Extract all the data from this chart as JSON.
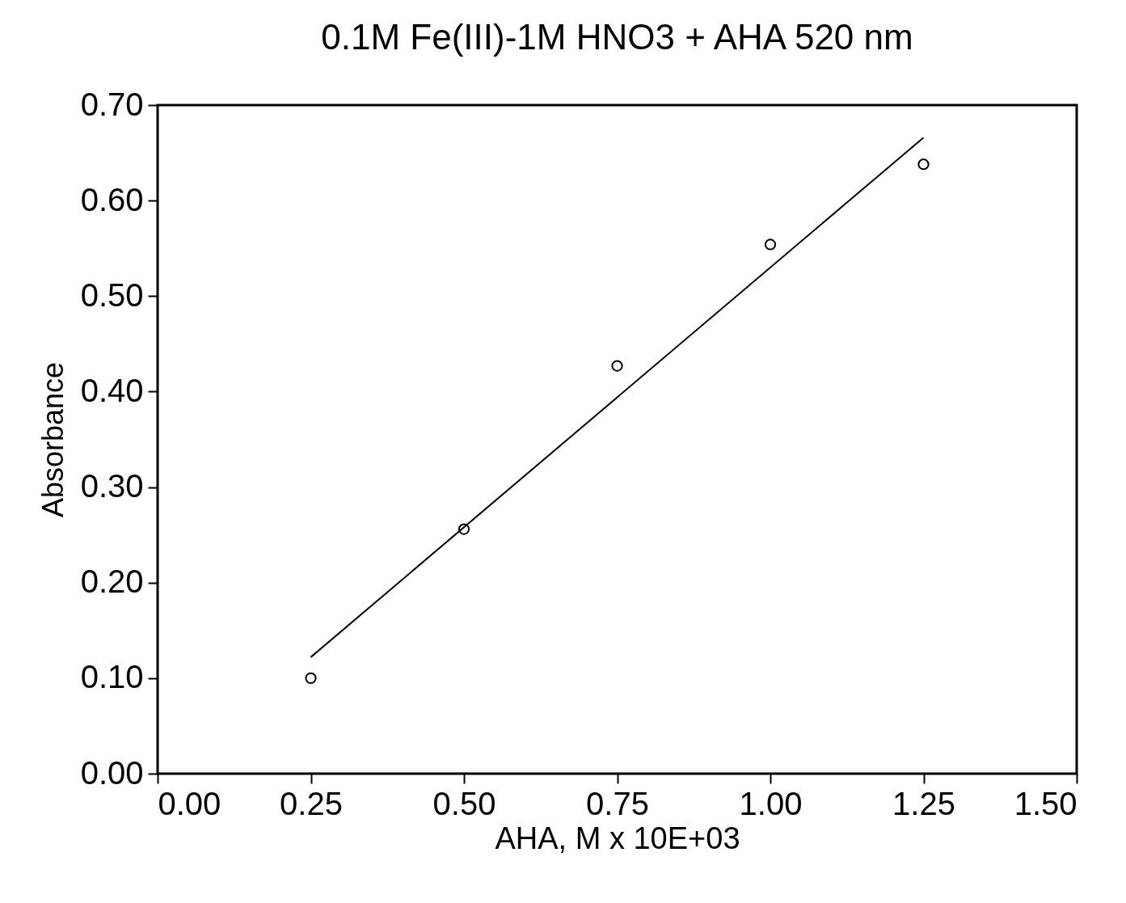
{
  "chart_data": {
    "type": "scatter",
    "title": "0.1M Fe(III)-1M HNO3 + AHA 520 nm",
    "xlabel": "AHA, M x 10E+03",
    "ylabel": "Absorbance",
    "xlim": [
      0,
      1.5
    ],
    "xticks": [
      {
        "value": 0,
        "label": "0.00"
      },
      {
        "value": 0.25,
        "label": "0.25"
      },
      {
        "value": 0.5,
        "label": "0.50"
      },
      {
        "value": 0.75,
        "label": "0.75"
      },
      {
        "value": 1,
        "label": "1.00"
      },
      {
        "value": 1.25,
        "label": "1.25"
      },
      {
        "value": 1.5,
        "label": "1.50"
      }
    ],
    "ylim": [
      0,
      0.7
    ],
    "yticks": [
      {
        "value": 0,
        "label": "0.00"
      },
      {
        "value": 0.1,
        "label": "0.10"
      },
      {
        "value": 0.2,
        "label": "0.20"
      },
      {
        "value": 0.3,
        "label": "0.30"
      },
      {
        "value": 0.4,
        "label": "0.40"
      },
      {
        "value": 0.5,
        "label": "0.50"
      },
      {
        "value": 0.6,
        "label": "0.60"
      },
      {
        "value": 0.7,
        "label": "0.70"
      }
    ],
    "grid": false,
    "marker": "circle",
    "series": [
      {
        "color": "#000000",
        "x": [
          0.25,
          0.5,
          0.75,
          1.0,
          1.25
        ],
        "values": [
          0.1,
          0.256,
          0.427,
          0.554,
          0.638
        ]
      },
      {
        "type": "line",
        "marker": "none",
        "color": "#000000",
        "x": [
          0.25,
          1.25
        ],
        "values": [
          0.122,
          0.666
        ]
      }
    ]
  }
}
